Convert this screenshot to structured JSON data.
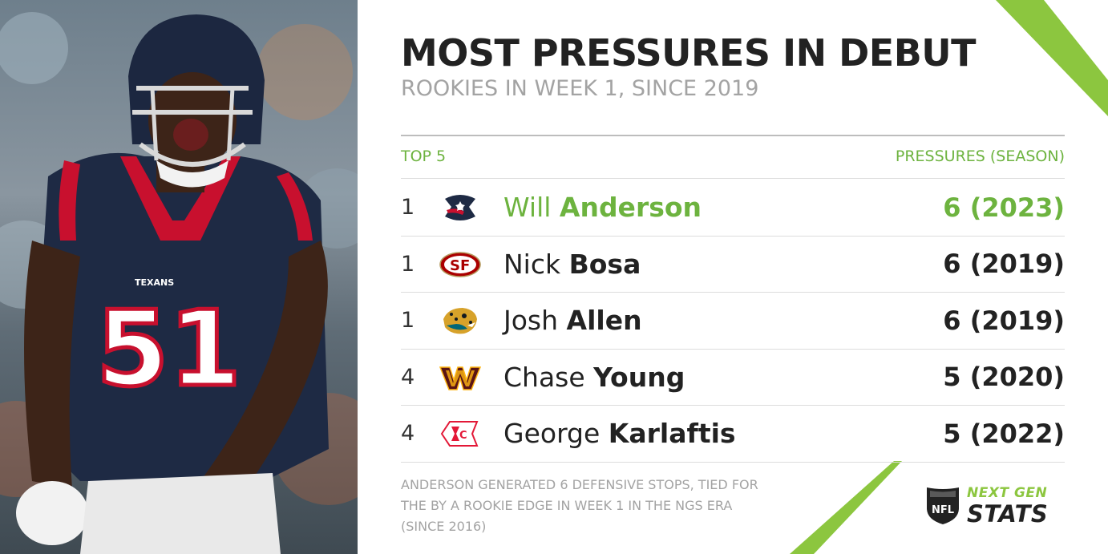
{
  "header": {
    "title": "MOST PRESSURES IN DEBUT",
    "subtitle": "ROOKIES IN WEEK 1, SINCE 2019"
  },
  "table": {
    "left_header": "TOP 5",
    "right_header": "PRESSURES (SEASON)",
    "rows": [
      {
        "rank": "1",
        "first": "Will ",
        "last": "Anderson",
        "value": "6 (2023)",
        "team_icon": "texans-logo-icon"
      },
      {
        "rank": "1",
        "first": "Nick ",
        "last": "Bosa",
        "value": "6 (2019)",
        "team_icon": "49ers-logo-icon"
      },
      {
        "rank": "1",
        "first": "Josh ",
        "last": "Allen",
        "value": "6 (2019)",
        "team_icon": "jaguars-logo-icon"
      },
      {
        "rank": "4",
        "first": "Chase ",
        "last": "Young",
        "value": "5 (2020)",
        "team_icon": "commanders-logo-icon"
      },
      {
        "rank": "4",
        "first": "George ",
        "last": "Karlaftis",
        "value": "5 (2022)",
        "team_icon": "chiefs-logo-icon"
      }
    ]
  },
  "footnote": "ANDERSON GENERATED 6 DEFENSIVE STOPS, TIED FOR THE BY A ROOKIE EDGE IN WEEK 1 IN THE NGS ERA (SINCE 2016)",
  "brand": {
    "line1": "NEXT GEN",
    "line2": "STATS",
    "shield_text": "NFL"
  },
  "photo": {
    "jersey_number": "51",
    "jersey_team": "TEXANS"
  },
  "colors": {
    "accent_green": "#6db33f",
    "stripe_green": "#8cc63f",
    "title_dark": "#222222",
    "muted_gray": "#a3a3a3"
  }
}
